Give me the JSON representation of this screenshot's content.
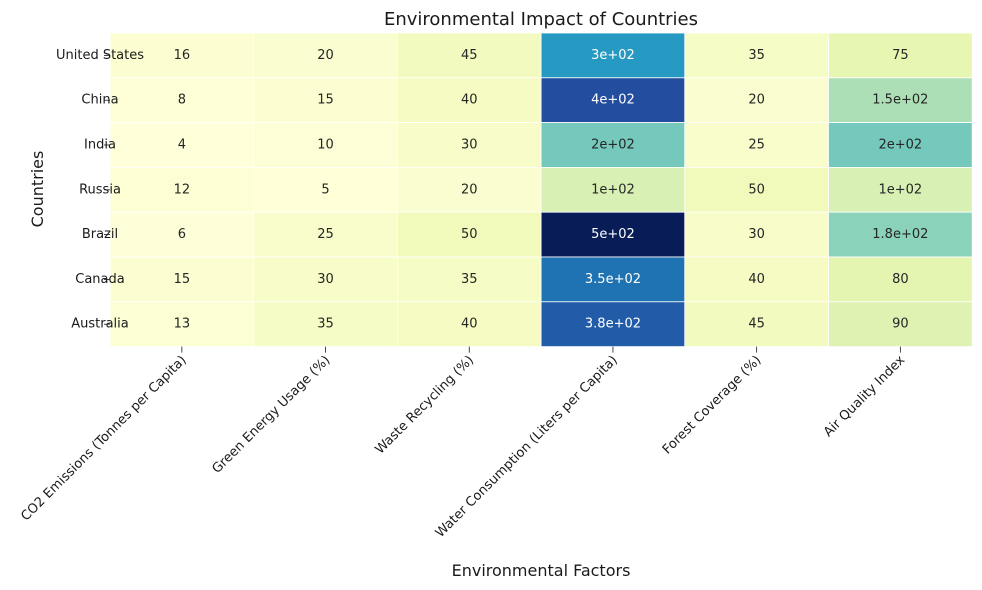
{
  "chart_data": {
    "type": "heatmap",
    "title": "Environmental Impact of Countries",
    "xlabel": "Environmental Factors",
    "ylabel": "Countries",
    "colormap": "YlGnBu",
    "grid": false,
    "colorbar": false,
    "x_categories": [
      "CO2 Emissions (Tonnes per Capita)",
      "Green Energy Usage (%)",
      "Waste Recycling (%)",
      "Water Consumption (Liters per Capita)",
      "Forest Coverage (%)",
      "Air Quality Index"
    ],
    "y_categories": [
      "United States",
      "China",
      "India",
      "Russia",
      "Brazil",
      "Canada",
      "Australia"
    ],
    "values": [
      [
        16,
        20,
        45,
        300,
        35,
        75
      ],
      [
        8,
        15,
        40,
        400,
        20,
        150
      ],
      [
        4,
        10,
        30,
        200,
        25,
        200
      ],
      [
        12,
        5,
        20,
        100,
        50,
        100
      ],
      [
        6,
        25,
        50,
        500,
        30,
        180
      ],
      [
        15,
        30,
        35,
        350,
        40,
        80
      ],
      [
        13,
        35,
        40,
        380,
        45,
        90
      ]
    ],
    "cell_labels": [
      [
        "16",
        "20",
        "45",
        "3e+02",
        "35",
        "75"
      ],
      [
        "8",
        "15",
        "40",
        "4e+02",
        "20",
        "1.5e+02"
      ],
      [
        "4",
        "10",
        "30",
        "2e+02",
        "25",
        "2e+02"
      ],
      [
        "12",
        "5",
        "20",
        "1e+02",
        "50",
        "1e+02"
      ],
      [
        "6",
        "25",
        "50",
        "5e+02",
        "30",
        "1.8e+02"
      ],
      [
        "15",
        "30",
        "35",
        "3.5e+02",
        "40",
        "80"
      ],
      [
        "13",
        "35",
        "40",
        "3.8e+02",
        "45",
        "90"
      ]
    ],
    "value_range": [
      4,
      500
    ]
  }
}
